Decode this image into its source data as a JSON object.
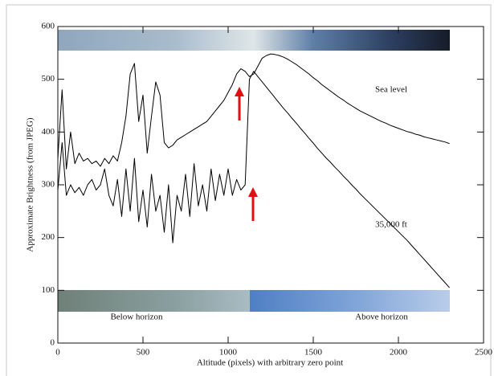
{
  "chart_data": {
    "type": "line",
    "xlabel": "Altitude (pixels) with arbitrary zero point",
    "ylabel": "Approximate Brightness (from JPEG)",
    "xlim": [
      0,
      2500
    ],
    "ylim": [
      0,
      600
    ],
    "xticks": [
      0,
      500,
      1000,
      1500,
      2000,
      2500
    ],
    "yticks": [
      0,
      100,
      200,
      300,
      400,
      500,
      600
    ],
    "grid": false,
    "annotations": [
      "Below horizon",
      "Above horizon"
    ],
    "x": [
      0,
      25,
      50,
      75,
      100,
      125,
      150,
      175,
      200,
      225,
      250,
      275,
      300,
      325,
      350,
      375,
      400,
      425,
      450,
      475,
      500,
      525,
      550,
      575,
      600,
      625,
      650,
      675,
      700,
      725,
      750,
      775,
      800,
      825,
      850,
      875,
      900,
      925,
      950,
      975,
      1000,
      1025,
      1050,
      1075,
      1100,
      1125,
      1150,
      1175,
      1200,
      1225,
      1250,
      1275,
      1300,
      1325,
      1350,
      1375,
      1400,
      1425,
      1450,
      1475,
      1500,
      1525,
      1550,
      1575,
      1600,
      1625,
      1650,
      1675,
      1700,
      1725,
      1750,
      1775,
      1800,
      1825,
      1850,
      1875,
      1900,
      1925,
      1950,
      1975,
      2000,
      2025,
      2050,
      2075,
      2100,
      2125,
      2150,
      2175,
      2200,
      2225,
      2250,
      2275,
      2300
    ],
    "series": [
      {
        "name": "Sea level",
        "color": "#000000",
        "values": [
          350,
          480,
          330,
          400,
          340,
          360,
          345,
          350,
          340,
          345,
          335,
          350,
          340,
          355,
          345,
          380,
          430,
          510,
          530,
          420,
          470,
          360,
          430,
          495,
          470,
          380,
          370,
          375,
          385,
          390,
          395,
          400,
          405,
          410,
          415,
          420,
          430,
          440,
          450,
          460,
          475,
          490,
          510,
          520,
          515,
          505,
          510,
          525,
          540,
          545,
          548,
          547,
          545,
          542,
          538,
          533,
          528,
          522,
          516,
          510,
          503,
          497,
          490,
          484,
          478,
          472,
          466,
          461,
          455,
          450,
          445,
          440,
          436,
          432,
          428,
          424,
          420,
          417,
          413,
          410,
          407,
          404,
          401,
          399,
          396,
          394,
          391,
          389,
          387,
          385,
          383,
          381,
          378
        ]
      },
      {
        "name": "35,000 ft",
        "color": "#000000",
        "values": [
          290,
          380,
          280,
          300,
          285,
          295,
          280,
          300,
          310,
          290,
          300,
          330,
          280,
          260,
          310,
          240,
          330,
          250,
          350,
          230,
          290,
          220,
          320,
          250,
          280,
          210,
          300,
          190,
          280,
          250,
          320,
          240,
          340,
          260,
          300,
          250,
          330,
          270,
          320,
          280,
          330,
          280,
          310,
          290,
          300,
          500,
          515,
          505,
          495,
          485,
          475,
          465,
          455,
          445,
          436,
          426,
          417,
          407,
          398,
          388,
          379,
          369,
          360,
          351,
          343,
          334,
          326,
          317,
          309,
          300,
          292,
          283,
          275,
          267,
          259,
          251,
          243,
          235,
          227,
          219,
          211,
          203,
          195,
          186,
          177,
          168,
          159,
          150,
          141,
          132,
          123,
          114,
          105
        ]
      }
    ]
  }
}
